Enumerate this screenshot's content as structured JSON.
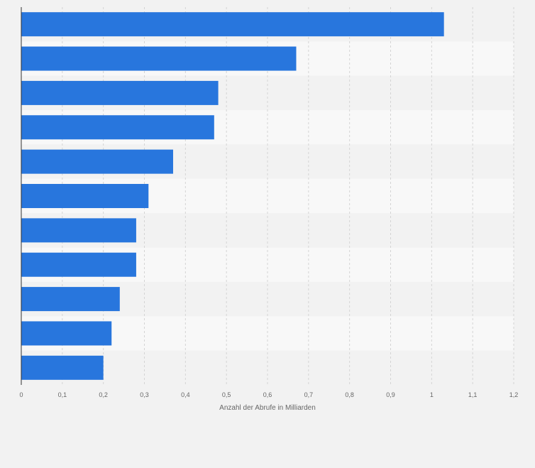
{
  "chart_data": {
    "type": "bar",
    "orientation": "horizontal",
    "categories": [
      "",
      "",
      "",
      "",
      "",
      "",
      "",
      "",
      "",
      "",
      ""
    ],
    "values": [
      1.03,
      0.67,
      0.48,
      0.47,
      0.37,
      0.31,
      0.28,
      0.28,
      0.24,
      0.22,
      0.2
    ],
    "title": "",
    "xlabel": "Anzahl der Abrufe in Milliarden",
    "ylabel": "",
    "xlim": [
      0,
      1.2
    ],
    "xticks": [
      0,
      0.1,
      0.2,
      0.3,
      0.4,
      0.5,
      0.6,
      0.7,
      0.8,
      0.9,
      1,
      1.1,
      1.2
    ],
    "xtick_labels": [
      "0",
      "0,1",
      "0,2",
      "0,3",
      "0,4",
      "0,5",
      "0,6",
      "0,7",
      "0,8",
      "0,9",
      "1",
      "1,1",
      "1,2"
    ],
    "grid": true,
    "legend": "none",
    "colors": {
      "bar": "#2876dd",
      "band_dark": "#f2f2f2",
      "band_light": "#f8f8f8",
      "grid": "#d4d4d4",
      "axis": "#333333",
      "text": "#666666"
    }
  }
}
